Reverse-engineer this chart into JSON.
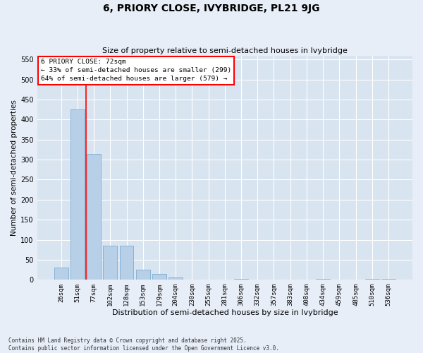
{
  "title": "6, PRIORY CLOSE, IVYBRIDGE, PL21 9JG",
  "subtitle": "Size of property relative to semi-detached houses in Ivybridge",
  "xlabel": "Distribution of semi-detached houses by size in Ivybridge",
  "ylabel": "Number of semi-detached properties",
  "categories": [
    "26sqm",
    "51sqm",
    "77sqm",
    "102sqm",
    "128sqm",
    "153sqm",
    "179sqm",
    "204sqm",
    "230sqm",
    "255sqm",
    "281sqm",
    "306sqm",
    "332sqm",
    "357sqm",
    "383sqm",
    "408sqm",
    "434sqm",
    "459sqm",
    "485sqm",
    "510sqm",
    "536sqm"
  ],
  "values": [
    30,
    425,
    315,
    85,
    85,
    25,
    15,
    5,
    0,
    0,
    0,
    2,
    0,
    0,
    0,
    0,
    2,
    0,
    0,
    2,
    2
  ],
  "bar_color": "#b8cfe8",
  "bar_edge_color": "#7aadd4",
  "property_sqm": 72,
  "pct_smaller": 33,
  "count_smaller": 299,
  "pct_larger": 64,
  "count_larger": 579,
  "annotation_line1": "6 PRIORY CLOSE: 72sqm",
  "annotation_line2": "← 33% of semi-detached houses are smaller (299)",
  "annotation_line3": "64% of semi-detached houses are larger (579) →",
  "ylim": [
    0,
    560
  ],
  "yticks": [
    0,
    50,
    100,
    150,
    200,
    250,
    300,
    350,
    400,
    450,
    500,
    550
  ],
  "bg_color": "#e8eef8",
  "plot_bg_color": "#d8e4f0",
  "grid_color": "#ffffff",
  "footer_line1": "Contains HM Land Registry data © Crown copyright and database right 2025.",
  "footer_line2": "Contains public sector information licensed under the Open Government Licence v3.0.",
  "red_line_x": 1.5
}
